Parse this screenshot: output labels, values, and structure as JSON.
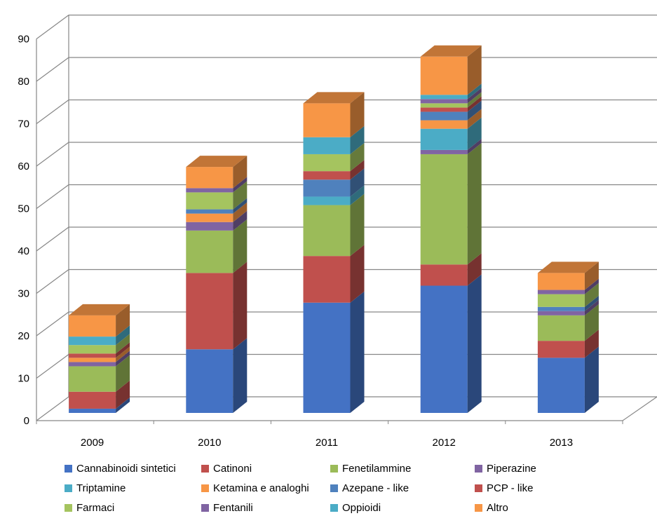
{
  "chart_data": {
    "type": "bar",
    "stacked": true,
    "style": "3d-column",
    "categories": [
      "2009",
      "2010",
      "2011",
      "2012",
      "2013"
    ],
    "y_ticks": [
      "0",
      "10",
      "20",
      "30",
      "40",
      "50",
      "60",
      "70",
      "80",
      "90"
    ],
    "ylim": [
      0,
      90
    ],
    "grid": true,
    "legend_position": "bottom",
    "series": [
      {
        "name": "Cannabinoidi sintetici",
        "color": "#4472C4",
        "values": [
          1,
          15,
          26,
          30,
          13
        ]
      },
      {
        "name": "Catinoni",
        "color": "#C0504D",
        "values": [
          4,
          18,
          11,
          5,
          4
        ]
      },
      {
        "name": "Fenetilammine",
        "color": "#9BBB59",
        "values": [
          6,
          10,
          12,
          26,
          6
        ]
      },
      {
        "name": "Piperazine",
        "color": "#8064A2",
        "values": [
          1,
          2,
          0,
          1,
          1
        ]
      },
      {
        "name": "Triptamine",
        "color": "#4BACC6",
        "values": [
          0,
          0,
          2,
          5,
          0
        ]
      },
      {
        "name": "Ketamina e analoghi",
        "color": "#F79646",
        "values": [
          1,
          2,
          0,
          2,
          0
        ]
      },
      {
        "name": "Azepane - like",
        "color": "#4F81BD",
        "values": [
          0,
          1,
          4,
          2,
          1
        ]
      },
      {
        "name": "PCP - like",
        "color": "#C0504D",
        "values": [
          1,
          0,
          2,
          1,
          0
        ]
      },
      {
        "name": "Farmaci",
        "color": "#A5C45F",
        "values": [
          2,
          4,
          4,
          1,
          3
        ]
      },
      {
        "name": "Fentanili",
        "color": "#8064A2",
        "values": [
          0,
          1,
          0,
          1,
          1
        ]
      },
      {
        "name": "Oppioidi",
        "color": "#4BACC6",
        "values": [
          2,
          0,
          4,
          1,
          0
        ]
      },
      {
        "name": "Altro",
        "color": "#F79646",
        "values": [
          5,
          5,
          8,
          9,
          4
        ]
      }
    ]
  }
}
